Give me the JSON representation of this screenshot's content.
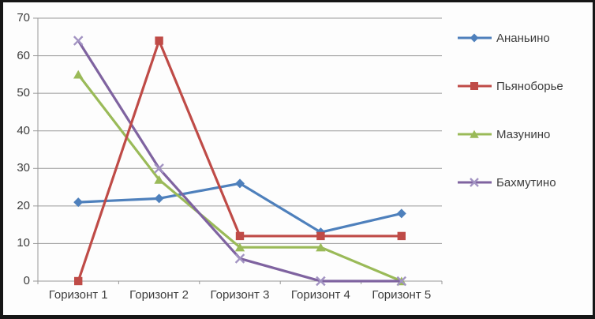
{
  "chart_data": {
    "type": "line",
    "title": "",
    "categories": [
      "Горизонт 1",
      "Горизонт 2",
      "Горизонт 3",
      "Горизонт 4",
      "Горизонт 5"
    ],
    "series": [
      {
        "name": "Ананьино",
        "marker": "diamond",
        "color": "#4E80BC",
        "values": [
          21,
          22,
          26,
          13,
          18
        ]
      },
      {
        "name": "Пьяноборье",
        "marker": "square",
        "color": "#BF4B47",
        "values": [
          0,
          64,
          12,
          12,
          12
        ]
      },
      {
        "name": "Мазунино",
        "marker": "triangle",
        "color": "#9ABA58",
        "values": [
          55,
          27,
          9,
          9,
          0
        ]
      },
      {
        "name": "Бахмутино",
        "marker": "x",
        "color": "#7F63A0",
        "marker_color": "#A293C2",
        "values": [
          64,
          30,
          6,
          0,
          0
        ]
      }
    ],
    "y_axis": {
      "min": 0,
      "max": 70,
      "step": 10,
      "tick_labels": [
        "0",
        "10",
        "20",
        "30",
        "40",
        "50",
        "60",
        "70"
      ]
    },
    "x_axis": {
      "tick_labels": [
        "Горизонт 1",
        "Горизонт 2",
        "Горизонт 3",
        "Горизонт 4",
        "Горизонт 5"
      ]
    },
    "grid": true,
    "legend_position": "right"
  },
  "styles": {
    "background": "#fdfdfd",
    "border_color": "#161616",
    "gridline_color": "#999999",
    "axis_color": "#999999",
    "text_color": "#3d3d3d"
  }
}
